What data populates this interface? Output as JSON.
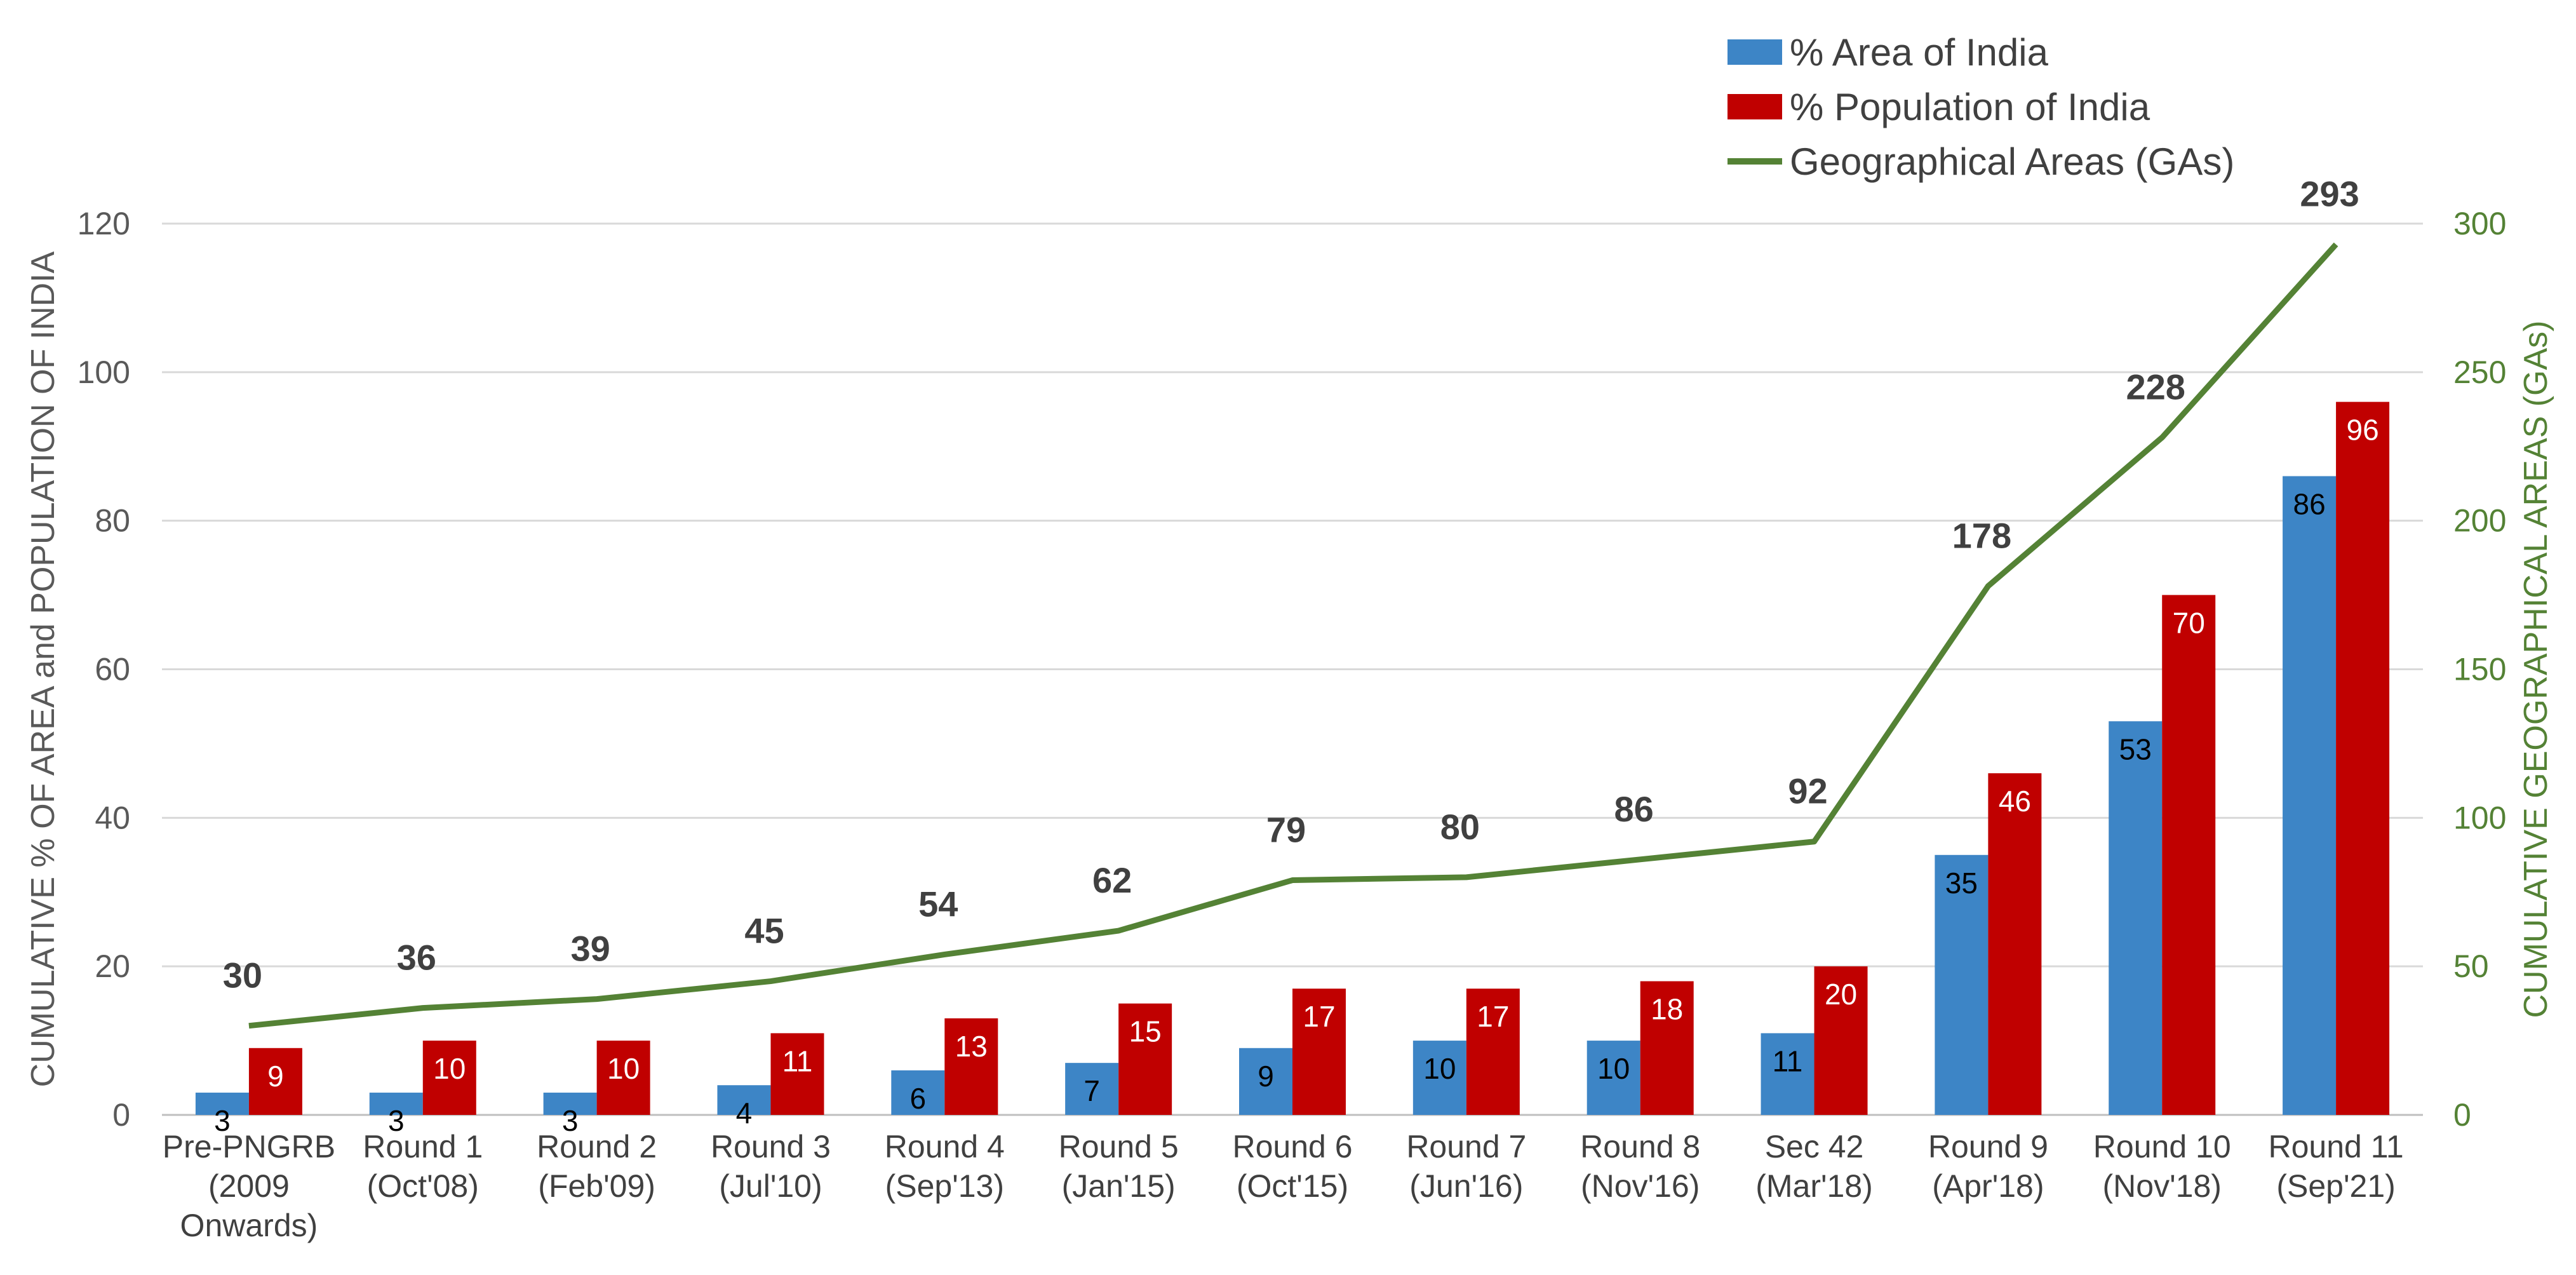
{
  "chart_data": {
    "type": "bar",
    "categories": [
      [
        "Pre-PNGRB",
        "(2009",
        "Onwards)"
      ],
      [
        "Round 1",
        "(Oct'08)"
      ],
      [
        "Round 2",
        "(Feb'09)"
      ],
      [
        "Round 3",
        "(Jul'10)"
      ],
      [
        "Round 4",
        "(Sep'13)"
      ],
      [
        "Round 5",
        "(Jan'15)"
      ],
      [
        "Round 6",
        "(Oct'15)"
      ],
      [
        "Round 7",
        "(Jun'16)"
      ],
      [
        "Round 8",
        "(Nov'16)"
      ],
      [
        "Sec 42",
        "(Mar'18)"
      ],
      [
        "Round 9",
        "(Apr'18)"
      ],
      [
        "Round 10",
        "(Nov'18)"
      ],
      [
        "Round 11",
        "(Sep'21)"
      ]
    ],
    "series": [
      {
        "name": "% Area of India",
        "type": "bar",
        "axis": "left",
        "color": "#3d85c6",
        "values": [
          3,
          3,
          3,
          4,
          6,
          7,
          9,
          10,
          10,
          11,
          35,
          53,
          86
        ],
        "labels": [
          "3",
          "3",
          "3",
          "4",
          "6",
          "7",
          "9",
          "10",
          "10",
          "11",
          "35",
          "53",
          "86"
        ]
      },
      {
        "name": "% Population of India",
        "type": "bar",
        "axis": "left",
        "color": "#c00000",
        "values": [
          9,
          10,
          10,
          11,
          13,
          15,
          17,
          17,
          18,
          20,
          46,
          70,
          96
        ],
        "labels": [
          "9",
          "10",
          "10",
          "11",
          "13",
          "15",
          "17",
          "17",
          "18",
          "20",
          "46",
          "70",
          "96"
        ]
      },
      {
        "name": "Geographical Areas (GAs)",
        "type": "line",
        "axis": "right",
        "color": "#548235",
        "values": [
          30,
          36,
          39,
          45,
          54,
          62,
          79,
          80,
          86,
          92,
          178,
          228,
          293
        ],
        "labels": [
          "30",
          "36",
          "39",
          "45",
          "54",
          "62",
          "79",
          "80",
          "86",
          "92",
          "178",
          "228",
          "293"
        ]
      }
    ],
    "ylabel": "CUMULATIVE  % OF AREA  and POPULATION OF INDIA",
    "y2label": "CUMULATIVE GEOGRAPHICAL AREAS (GAs)",
    "ylim": [
      0,
      120
    ],
    "y2lim": [
      0,
      300
    ],
    "yticks": [
      "0",
      "20",
      "40",
      "60",
      "80",
      "100",
      "120"
    ],
    "y2ticks": [
      "0",
      "50",
      "100",
      "150",
      "200",
      "250",
      "300"
    ],
    "grid": true,
    "legend_position": "top-right"
  }
}
